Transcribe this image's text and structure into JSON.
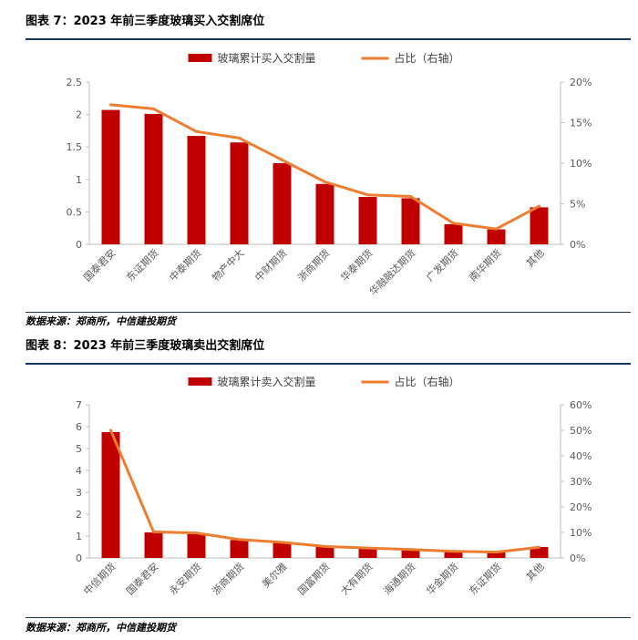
{
  "charts_page": {
    "figure7_title": "图表 7：2023 年前三季度玻璃买入交割席位",
    "figure8_title": "图表 8：2023 年前三季度玻璃卖出交割席位",
    "source_text": "数据来源：郑商所，中信建投期货"
  },
  "colors": {
    "bar": "#c00000",
    "line": "#ed7d31",
    "rule": "#17375e",
    "axis_text": "#595959"
  },
  "chart_data": [
    {
      "type": "bar",
      "title": "",
      "legend_position": "top-center",
      "grid": false,
      "categories": [
        "国泰君安",
        "东证期货",
        "中泰期货",
        "物产中大",
        "中财期货",
        "浙商期货",
        "华泰期货",
        "华融融达期货",
        "广发期货",
        "南华期货",
        "其他"
      ],
      "series": [
        {
          "name": "玻璃累计买入交割量",
          "type": "bar",
          "axis": "left",
          "values": [
            2.07,
            2.01,
            1.67,
            1.57,
            1.25,
            0.93,
            0.73,
            0.71,
            0.31,
            0.23,
            0.57
          ]
        },
        {
          "name": "占比（右轴）",
          "type": "line",
          "axis": "right",
          "values": [
            17.2,
            16.7,
            13.9,
            13.1,
            10.4,
            7.7,
            6.1,
            5.9,
            2.6,
            1.9,
            4.7
          ]
        }
      ],
      "left_axis": {
        "min": 0,
        "max": 2.5,
        "ticks": [
          "0",
          "0.5",
          "1",
          "1.5",
          "2",
          "2.5"
        ]
      },
      "right_axis": {
        "min": 0,
        "max": 20,
        "ticks": [
          "0%",
          "5%",
          "10%",
          "15%",
          "20%"
        ]
      }
    },
    {
      "type": "bar",
      "title": "",
      "legend_position": "top-center",
      "grid": false,
      "categories": [
        "中信期货",
        "国泰君安",
        "永安期货",
        "浙商期货",
        "美尔雅",
        "国富期货",
        "大有期货",
        "海通期货",
        "华金期货",
        "东证期货",
        "其他"
      ],
      "series": [
        {
          "name": "玻璃累计卖入交割量",
          "type": "bar",
          "axis": "left",
          "values": [
            5.75,
            1.17,
            1.11,
            0.82,
            0.7,
            0.52,
            0.45,
            0.38,
            0.3,
            0.27,
            0.5
          ]
        },
        {
          "name": "占比（右轴）",
          "type": "line",
          "axis": "right",
          "values": [
            50,
            10.2,
            9.8,
            7.2,
            6.1,
            4.5,
            3.9,
            3.3,
            2.6,
            2.3,
            4.2
          ]
        }
      ],
      "left_axis": {
        "min": 0,
        "max": 7,
        "ticks": [
          "0",
          "1",
          "2",
          "3",
          "4",
          "5",
          "6",
          "7"
        ]
      },
      "right_axis": {
        "min": 0,
        "max": 60,
        "ticks": [
          "0%",
          "10%",
          "20%",
          "30%",
          "40%",
          "50%",
          "60%"
        ]
      }
    }
  ]
}
